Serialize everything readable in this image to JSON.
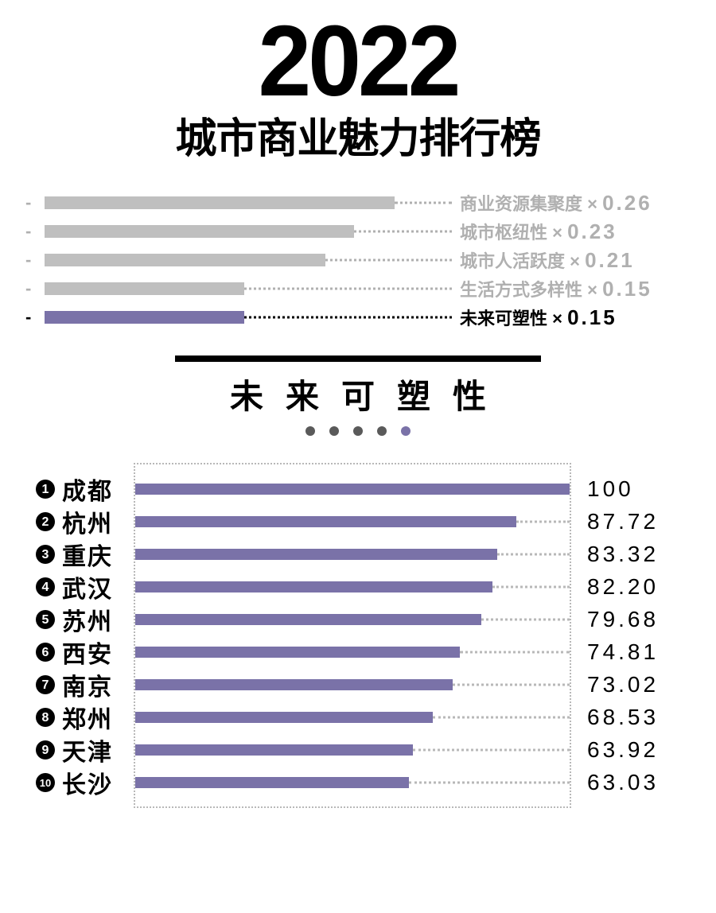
{
  "header": {
    "year": "2022",
    "subtitle": "城市商业魅力排行榜"
  },
  "colors": {
    "text": "#000000",
    "muted": "#b0b0b0",
    "muted_bar": "#bfbfbf",
    "accent": "#7a72a8",
    "dot_muted": "#5a5a5a",
    "background": "#ffffff"
  },
  "weights": {
    "track_width_pct": 100,
    "items": [
      {
        "label": "商业资源集聚度",
        "weight": "0.26",
        "bar_pct": 86,
        "highlight": false
      },
      {
        "label": "城市枢纽性",
        "weight": "0.23",
        "bar_pct": 76,
        "highlight": false
      },
      {
        "label": "城市人活跃度",
        "weight": "0.21",
        "bar_pct": 69,
        "highlight": false
      },
      {
        "label": "生活方式多样性",
        "weight": "0.15",
        "bar_pct": 49,
        "highlight": false
      },
      {
        "label": "未来可塑性",
        "weight": "0.15",
        "bar_pct": 49,
        "highlight": true
      }
    ],
    "multiply_symbol": "×"
  },
  "section": {
    "title": "未来可塑性",
    "dots_total": 5,
    "active_dot_index": 4
  },
  "ranking": {
    "max": 100,
    "items": [
      {
        "rank": 1,
        "city": "成都",
        "value": 100.0,
        "display": "100"
      },
      {
        "rank": 2,
        "city": "杭州",
        "value": 87.72,
        "display": "87.72"
      },
      {
        "rank": 3,
        "city": "重庆",
        "value": 83.32,
        "display": "83.32"
      },
      {
        "rank": 4,
        "city": "武汉",
        "value": 82.2,
        "display": "82.20"
      },
      {
        "rank": 5,
        "city": "苏州",
        "value": 79.68,
        "display": "79.68"
      },
      {
        "rank": 6,
        "city": "西安",
        "value": 74.81,
        "display": "74.81"
      },
      {
        "rank": 7,
        "city": "南京",
        "value": 73.02,
        "display": "73.02"
      },
      {
        "rank": 8,
        "city": "郑州",
        "value": 68.53,
        "display": "68.53"
      },
      {
        "rank": 9,
        "city": "天津",
        "value": 63.92,
        "display": "63.92"
      },
      {
        "rank": 10,
        "city": "长沙",
        "value": 63.03,
        "display": "63.03"
      }
    ]
  }
}
